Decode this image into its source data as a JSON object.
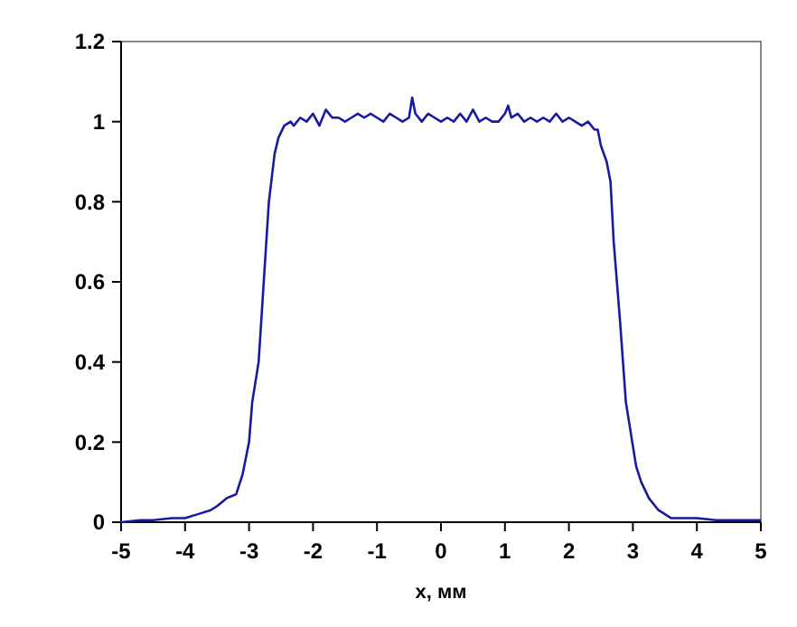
{
  "chart_data": {
    "type": "line",
    "xlabel": "x, мм",
    "xlim": [
      -5,
      5
    ],
    "ylim": [
      0,
      1.2
    ],
    "xticks": [
      -5,
      -4,
      -3,
      -2,
      -1,
      0,
      1,
      2,
      3,
      4,
      5
    ],
    "yticks": [
      0,
      0.2,
      0.4,
      0.6,
      0.8,
      1,
      1.2
    ],
    "grid": false,
    "marker": "none",
    "line_style": "solid",
    "series": [
      {
        "color": "#1a1aa0",
        "x": [
          -5,
          -4.7,
          -4.5,
          -4.2,
          -4,
          -3.8,
          -3.6,
          -3.5,
          -3.35,
          -3.2,
          -3.1,
          -3,
          -2.95,
          -2.85,
          -2.77,
          -2.69,
          -2.6,
          -2.54,
          -2.45,
          -2.35,
          -2.3,
          -2.2,
          -2.1,
          -2,
          -1.9,
          -1.8,
          -1.7,
          -1.6,
          -1.5,
          -1.4,
          -1.3,
          -1.2,
          -1.1,
          -1,
          -0.9,
          -0.8,
          -0.7,
          -0.6,
          -0.5,
          -0.45,
          -0.4,
          -0.3,
          -0.2,
          -0.1,
          0,
          0.1,
          0.2,
          0.3,
          0.4,
          0.5,
          0.6,
          0.7,
          0.8,
          0.9,
          1,
          1.05,
          1.1,
          1.2,
          1.3,
          1.4,
          1.5,
          1.6,
          1.7,
          1.8,
          1.9,
          2,
          2.1,
          2.2,
          2.3,
          2.4,
          2.45,
          2.5,
          2.59,
          2.65,
          2.7,
          2.8,
          2.89,
          2.99,
          3.05,
          3.13,
          3.25,
          3.4,
          3.6,
          3.8,
          4,
          4.3,
          4.6,
          4.8,
          5
        ],
        "values": [
          0,
          0.005,
          0.005,
          0.01,
          0.01,
          0.02,
          0.03,
          0.04,
          0.06,
          0.07,
          0.12,
          0.2,
          0.3,
          0.4,
          0.6,
          0.8,
          0.92,
          0.96,
          0.99,
          1,
          0.99,
          1.01,
          1,
          1.02,
          0.99,
          1.03,
          1.01,
          1.01,
          1,
          1.01,
          1.02,
          1.01,
          1.02,
          1.01,
          1.0,
          1.02,
          1.01,
          1.0,
          1.01,
          1.06,
          1.02,
          1.0,
          1.02,
          1.01,
          1.0,
          1.01,
          1.0,
          1.02,
          1.0,
          1.03,
          1.0,
          1.01,
          1.0,
          1.0,
          1.02,
          1.04,
          1.01,
          1.02,
          1.0,
          1.01,
          1.0,
          1.01,
          1.0,
          1.02,
          1.0,
          1.01,
          1.0,
          0.99,
          1.0,
          0.98,
          0.98,
          0.94,
          0.9,
          0.85,
          0.7,
          0.5,
          0.3,
          0.2,
          0.14,
          0.1,
          0.06,
          0.03,
          0.01,
          0.01,
          0.01,
          0.005,
          0.005,
          0.005,
          0.005
        ]
      }
    ]
  }
}
